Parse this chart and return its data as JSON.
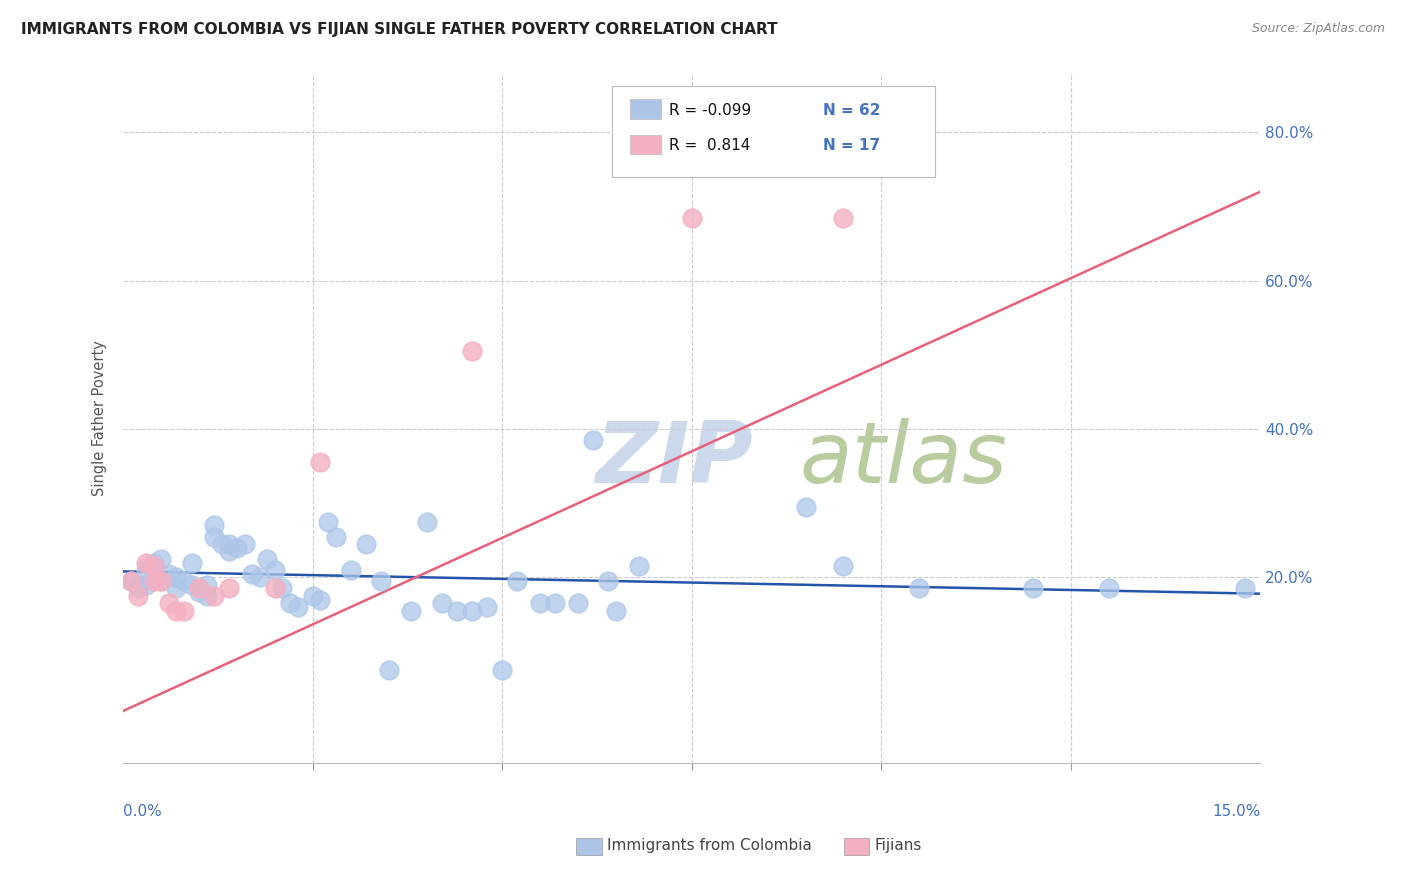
{
  "title": "IMMIGRANTS FROM COLOMBIA VS FIJIAN SINGLE FATHER POVERTY CORRELATION CHART",
  "source": "Source: ZipAtlas.com",
  "ylabel": "Single Father Poverty",
  "xlim": [
    0.0,
    0.15
  ],
  "ylim": [
    -0.05,
    0.88
  ],
  "colombia_color": "#adc6e8",
  "fijian_color": "#f4afc0",
  "colombia_line_color": "#2255aa",
  "fijian_line_color": "#e8607a",
  "colombia_points": [
    [
      0.001,
      0.195
    ],
    [
      0.002,
      0.19
    ],
    [
      0.002,
      0.185
    ],
    [
      0.003,
      0.21
    ],
    [
      0.003,
      0.19
    ],
    [
      0.004,
      0.22
    ],
    [
      0.004,
      0.2
    ],
    [
      0.005,
      0.225
    ],
    [
      0.005,
      0.195
    ],
    [
      0.006,
      0.205
    ],
    [
      0.007,
      0.2
    ],
    [
      0.007,
      0.185
    ],
    [
      0.008,
      0.195
    ],
    [
      0.009,
      0.22
    ],
    [
      0.009,
      0.19
    ],
    [
      0.01,
      0.185
    ],
    [
      0.01,
      0.18
    ],
    [
      0.011,
      0.19
    ],
    [
      0.011,
      0.175
    ],
    [
      0.012,
      0.255
    ],
    [
      0.012,
      0.27
    ],
    [
      0.013,
      0.245
    ],
    [
      0.014,
      0.245
    ],
    [
      0.014,
      0.235
    ],
    [
      0.015,
      0.24
    ],
    [
      0.016,
      0.245
    ],
    [
      0.017,
      0.205
    ],
    [
      0.018,
      0.2
    ],
    [
      0.019,
      0.225
    ],
    [
      0.02,
      0.21
    ],
    [
      0.021,
      0.185
    ],
    [
      0.022,
      0.165
    ],
    [
      0.023,
      0.16
    ],
    [
      0.025,
      0.175
    ],
    [
      0.026,
      0.17
    ],
    [
      0.027,
      0.275
    ],
    [
      0.028,
      0.255
    ],
    [
      0.03,
      0.21
    ],
    [
      0.032,
      0.245
    ],
    [
      0.034,
      0.195
    ],
    [
      0.035,
      0.075
    ],
    [
      0.038,
      0.155
    ],
    [
      0.04,
      0.275
    ],
    [
      0.042,
      0.165
    ],
    [
      0.044,
      0.155
    ],
    [
      0.046,
      0.155
    ],
    [
      0.048,
      0.16
    ],
    [
      0.05,
      0.075
    ],
    [
      0.052,
      0.195
    ],
    [
      0.055,
      0.165
    ],
    [
      0.057,
      0.165
    ],
    [
      0.06,
      0.165
    ],
    [
      0.062,
      0.385
    ],
    [
      0.064,
      0.195
    ],
    [
      0.065,
      0.155
    ],
    [
      0.068,
      0.215
    ],
    [
      0.09,
      0.295
    ],
    [
      0.095,
      0.215
    ],
    [
      0.105,
      0.185
    ],
    [
      0.12,
      0.185
    ],
    [
      0.13,
      0.185
    ],
    [
      0.148,
      0.185
    ]
  ],
  "fijian_points": [
    [
      0.001,
      0.195
    ],
    [
      0.002,
      0.175
    ],
    [
      0.003,
      0.22
    ],
    [
      0.004,
      0.195
    ],
    [
      0.004,
      0.215
    ],
    [
      0.005,
      0.195
    ],
    [
      0.006,
      0.165
    ],
    [
      0.007,
      0.155
    ],
    [
      0.008,
      0.155
    ],
    [
      0.01,
      0.185
    ],
    [
      0.012,
      0.175
    ],
    [
      0.014,
      0.185
    ],
    [
      0.02,
      0.185
    ],
    [
      0.026,
      0.355
    ],
    [
      0.046,
      0.505
    ],
    [
      0.075,
      0.685
    ],
    [
      0.095,
      0.685
    ]
  ],
  "colombia_trend_x": [
    0.0,
    0.15
  ],
  "colombia_trend_y": [
    0.208,
    0.178
  ],
  "fijian_trend_x": [
    0.0,
    0.15
  ],
  "fijian_trend_y": [
    0.02,
    0.72
  ],
  "yticks": [
    0.2,
    0.4,
    0.6,
    0.8
  ],
  "ytick_labels": [
    "20.0%",
    "40.0%",
    "60.0%",
    "80.0%"
  ],
  "xtick_positions": [
    0.025,
    0.05,
    0.075,
    0.1,
    0.125
  ],
  "legend_r1": "R = -0.099",
  "legend_n1": "N = 62",
  "legend_r2": "R =  0.814",
  "legend_n2": "N = 17",
  "legend1_label": "Immigrants from Colombia",
  "legend2_label": "Fijians",
  "zip_color": "#ccd9ec",
  "atlas_color": "#c8d8b0"
}
